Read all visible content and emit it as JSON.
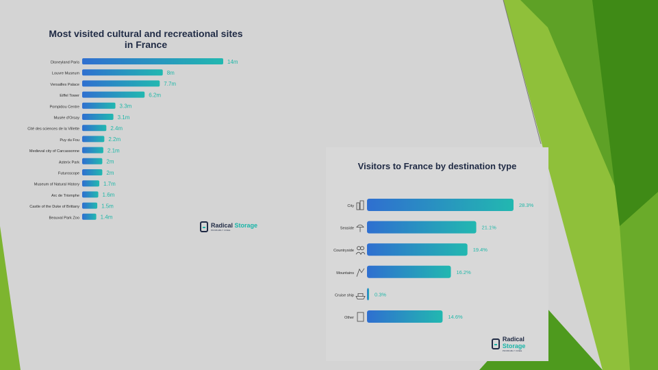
{
  "colors": {
    "bar_start": "#2f6fd0",
    "bar_end": "#22b8b0",
    "label_teal": "#1fb7a8",
    "title_navy": "#1f2a44",
    "green_dark": "#3f8a16",
    "green_light": "#8fc03a"
  },
  "left_chart": {
    "title_line1": "Most visited cultural and recreational sites",
    "title_line2": "in France",
    "logo": {
      "brand_a": "Radical",
      "brand_b": "Storage",
      "tagline": "PROBABLY FREE"
    }
  },
  "right_chart": {
    "title": "Visitors to France by destination type",
    "logo": {
      "brand_a": "Radical",
      "brand_b": "Storage",
      "tagline": "PROBABLY FREE"
    }
  },
  "chart_data": [
    {
      "type": "bar",
      "orientation": "horizontal",
      "title": "Most visited cultural and recreational sites in France",
      "unit": "m",
      "categories": [
        "Disneyland Paris",
        "Louvre Museum",
        "Versailles Palace",
        "Eiffel Tower",
        "Pompidou Centre",
        "Musée d'Orsay",
        "Cité des sciences de la Villette",
        "Puy du Fou",
        "Medieval city of Carcassonne",
        "Asterix Park",
        "Futuroscope",
        "Museum of Natural History",
        "Arc de Triomphe",
        "Castle of the Duke of Brittany",
        "Beauval Park Zoo"
      ],
      "values": [
        14,
        8,
        7.7,
        6.2,
        3.3,
        3.1,
        2.4,
        2.2,
        2.1,
        2,
        2,
        1.7,
        1.6,
        1.5,
        1.4
      ],
      "labels": [
        "14m",
        "8m",
        "7.7m",
        "6.2m",
        "3.3m",
        "3.1m",
        "2.4m",
        "2.2m",
        "2.1m",
        "2m",
        "2m",
        "1.7m",
        "1.6m",
        "1.5m",
        "1.4m"
      ],
      "xlim": [
        0,
        14
      ],
      "grid": false,
      "legend": "none"
    },
    {
      "type": "bar",
      "orientation": "horizontal",
      "title": "Visitors to France by destination type",
      "unit": "%",
      "categories": [
        "City",
        "Seaside",
        "Countryside",
        "Mountains",
        "Cruise ship",
        "Other"
      ],
      "icons": [
        "buildings-icon",
        "beach-umbrella-icon",
        "people-icon",
        "climber-icon",
        "cruise-ship-icon",
        "door-icon"
      ],
      "values": [
        28.3,
        21.1,
        19.4,
        16.2,
        0.3,
        14.6
      ],
      "labels": [
        "28.3%",
        "21.1%",
        "19.4%",
        "16.2%",
        "0.3%",
        "14.6%"
      ],
      "xlim": [
        0,
        28.3
      ],
      "grid": false,
      "legend": "none"
    }
  ]
}
